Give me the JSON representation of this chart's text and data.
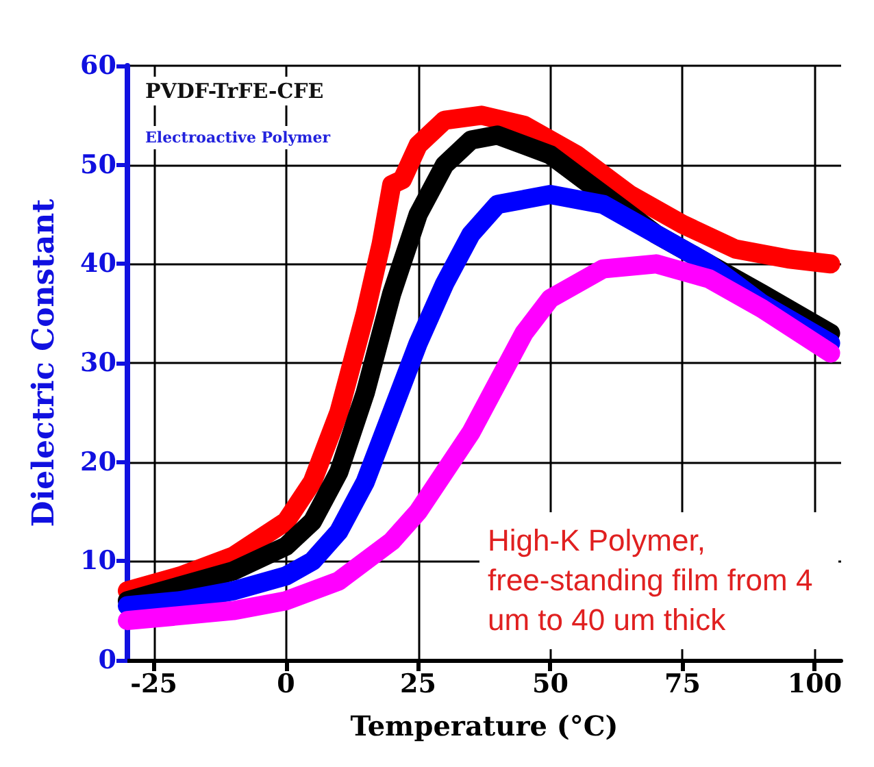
{
  "chart_data": {
    "type": "line",
    "title": "PVDF-TrFE-CFE",
    "subtitle": "Electroactive Polymer",
    "xlabel": "Temperature (°C)",
    "ylabel": "Dielectric Constant",
    "annotations": [
      "High-K Polymer, free-standing film from 4 um to 40 um thick"
    ],
    "xlim": [
      -30,
      105
    ],
    "xticks": [
      -25,
      0,
      25,
      50,
      75,
      100
    ],
    "ylim": [
      0,
      60
    ],
    "yticks": [
      0,
      10,
      20,
      30,
      40,
      50,
      60
    ],
    "grid": true,
    "marker": "none",
    "line_style": "solid",
    "series": [
      {
        "color": "#ff0000",
        "x": [
          -30,
          -20,
          -10,
          0,
          5,
          10,
          15,
          18,
          20,
          22,
          25,
          30,
          37,
          45,
          55,
          65,
          75,
          85,
          95,
          103
        ],
        "values": [
          7,
          8.5,
          10.5,
          14,
          18,
          25,
          35,
          42,
          48,
          48.5,
          52,
          54.5,
          55,
          54,
          51,
          47,
          44,
          41.5,
          40.5,
          40
        ]
      },
      {
        "color": "#000000",
        "x": [
          -30,
          -20,
          -10,
          0,
          5,
          10,
          15,
          20,
          25,
          30,
          35,
          40,
          50,
          60,
          70,
          80,
          90,
          103
        ],
        "values": [
          6,
          7.5,
          9,
          11.5,
          14,
          19,
          27,
          37,
          45,
          50,
          52.5,
          53,
          51,
          47,
          43,
          40,
          37,
          33
        ]
      },
      {
        "color": "#0000ff",
        "x": [
          -30,
          -20,
          -10,
          0,
          5,
          10,
          15,
          20,
          25,
          30,
          35,
          40,
          50,
          60,
          70,
          80,
          90,
          103
        ],
        "values": [
          5.5,
          6,
          7,
          8.5,
          10,
          13,
          18,
          25,
          32,
          38,
          43,
          46,
          47,
          46,
          43,
          40,
          36,
          32
        ]
      },
      {
        "color": "#ff00ff",
        "x": [
          -30,
          -20,
          -10,
          0,
          10,
          20,
          25,
          30,
          35,
          40,
          45,
          50,
          60,
          70,
          80,
          90,
          103
        ],
        "values": [
          4,
          4.5,
          5,
          6,
          8,
          12,
          15,
          19,
          23,
          28,
          33,
          36.5,
          39.5,
          40,
          38.5,
          35.5,
          31
        ]
      }
    ]
  }
}
